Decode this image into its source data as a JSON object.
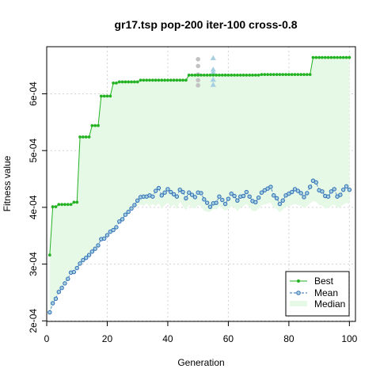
{
  "chart_data": {
    "type": "line",
    "title": "gr17.tsp pop-200 iter-100 cross-0.8",
    "xlabel": "Generation",
    "ylabel": "Fitness value",
    "xlim": [
      0,
      102
    ],
    "ylim": [
      0.000199,
      0.000683
    ],
    "xticks": [
      0,
      20,
      40,
      60,
      80,
      100
    ],
    "xtick_labels": [
      "0",
      "20",
      "40",
      "60",
      "80",
      "100"
    ],
    "yticks": [
      0.0002,
      0.0003,
      0.0004,
      0.0005,
      0.0006
    ],
    "ytick_labels": [
      "2e-04",
      "3e-04",
      "4e-04",
      "5e-04",
      "6e-04"
    ],
    "grid": true,
    "legend_position": "bottom-right",
    "colors": {
      "best": "#22b222",
      "mean": "#2e6eb5",
      "median_fill": "#e6f8e6",
      "grid": "#d3d3d3",
      "marker_gray": "#c2c2c2",
      "marker_blue": "#a6cfe0"
    },
    "series": [
      {
        "name": "Best",
        "x": [
          1,
          2,
          3,
          4,
          5,
          6,
          7,
          8,
          9,
          10,
          11,
          12,
          13,
          14,
          15,
          16,
          17,
          18,
          19,
          20,
          21,
          22,
          23,
          24,
          25,
          26,
          27,
          28,
          29,
          30,
          31,
          32,
          33,
          34,
          35,
          36,
          37,
          38,
          39,
          40,
          41,
          42,
          43,
          44,
          45,
          46,
          47,
          48,
          49,
          50,
          51,
          52,
          53,
          54,
          55,
          56,
          57,
          58,
          59,
          60,
          61,
          62,
          63,
          64,
          65,
          66,
          67,
          68,
          69,
          70,
          71,
          72,
          73,
          74,
          75,
          76,
          77,
          78,
          79,
          80,
          81,
          82,
          83,
          84,
          85,
          86,
          87,
          88,
          89,
          90,
          91,
          92,
          93,
          94,
          95,
          96,
          97,
          98,
          99,
          100
        ],
        "y": [
          0.000316,
          0.000401,
          0.000401,
          0.000405,
          0.000405,
          0.000405,
          0.000405,
          0.000405,
          0.000409,
          0.000409,
          0.000524,
          0.000524,
          0.000524,
          0.000524,
          0.000544,
          0.000544,
          0.000544,
          0.000596,
          0.000596,
          0.000596,
          0.000596,
          0.000619,
          0.000619,
          0.000621,
          0.000621,
          0.000621,
          0.000621,
          0.000621,
          0.000621,
          0.000621,
          0.000624,
          0.000624,
          0.000624,
          0.000624,
          0.000624,
          0.000624,
          0.000624,
          0.000624,
          0.000624,
          0.000624,
          0.000624,
          0.000624,
          0.000624,
          0.000624,
          0.000624,
          0.000624,
          0.000633,
          0.000633,
          0.000633,
          0.000633,
          0.000633,
          0.000633,
          0.000633,
          0.000633,
          0.000633,
          0.000633,
          0.000633,
          0.000633,
          0.000633,
          0.000633,
          0.000633,
          0.000633,
          0.000633,
          0.000633,
          0.000633,
          0.000633,
          0.000633,
          0.000633,
          0.000633,
          0.000633,
          0.000634,
          0.000634,
          0.000634,
          0.000634,
          0.000634,
          0.000634,
          0.000634,
          0.000634,
          0.000634,
          0.000634,
          0.000634,
          0.000634,
          0.000634,
          0.000634,
          0.000634,
          0.000634,
          0.000634,
          0.000664,
          0.000664,
          0.000664,
          0.000664,
          0.000664,
          0.000664,
          0.000664,
          0.000664,
          0.000664,
          0.000664,
          0.000664,
          0.000664,
          0.000664
        ]
      },
      {
        "name": "Mean",
        "x": [
          1,
          2,
          3,
          4,
          5,
          6,
          7,
          8,
          9,
          10,
          11,
          12,
          13,
          14,
          15,
          16,
          17,
          18,
          19,
          20,
          21,
          22,
          23,
          24,
          25,
          26,
          27,
          28,
          29,
          30,
          31,
          32,
          33,
          34,
          35,
          36,
          37,
          38,
          39,
          40,
          41,
          42,
          43,
          44,
          45,
          46,
          47,
          48,
          49,
          50,
          51,
          52,
          53,
          54,
          55,
          56,
          57,
          58,
          59,
          60,
          61,
          62,
          63,
          64,
          65,
          66,
          67,
          68,
          69,
          70,
          71,
          72,
          73,
          74,
          75,
          76,
          77,
          78,
          79,
          80,
          81,
          82,
          83,
          84,
          85,
          86,
          87,
          88,
          89,
          90,
          91,
          92,
          93,
          94,
          95,
          96,
          97,
          98,
          99,
          100
        ],
        "y": [
          0.000215,
          0.000231,
          0.000239,
          0.000251,
          0.000258,
          0.000266,
          0.000274,
          0.000285,
          0.000286,
          0.000293,
          0.000301,
          0.000307,
          0.000311,
          0.000316,
          0.000322,
          0.000327,
          0.000333,
          0.000344,
          0.000345,
          0.000351,
          0.000357,
          0.00036,
          0.000365,
          0.000375,
          0.000379,
          0.000387,
          0.000392,
          0.000398,
          0.000404,
          0.000412,
          0.000418,
          0.000419,
          0.000419,
          0.000421,
          0.000419,
          0.000429,
          0.000434,
          0.000421,
          0.000426,
          0.000432,
          0.000427,
          0.000423,
          0.000419,
          0.000431,
          0.000427,
          0.000416,
          0.000426,
          0.000422,
          0.000418,
          0.000426,
          0.000425,
          0.000414,
          0.000408,
          0.000401,
          0.000407,
          0.000408,
          0.000419,
          0.000413,
          0.000406,
          0.000415,
          0.000424,
          0.00042,
          0.000412,
          0.000419,
          0.00042,
          0.000427,
          0.000419,
          0.000411,
          0.000409,
          0.000417,
          0.000426,
          0.00043,
          0.000433,
          0.000436,
          0.000421,
          0.000416,
          0.000406,
          0.000412,
          0.000421,
          0.000424,
          0.000427,
          0.000432,
          0.000429,
          0.000425,
          0.000418,
          0.000425,
          0.000436,
          0.000447,
          0.000444,
          0.00043,
          0.000428,
          0.00042,
          0.000419,
          0.000428,
          0.000432,
          0.000419,
          0.000422,
          0.000431,
          0.000437,
          0.000431
        ]
      },
      {
        "name": "Median",
        "x": [
          1,
          2,
          3,
          4,
          5,
          6,
          7,
          8,
          9,
          10,
          11,
          12,
          13,
          14,
          15,
          16,
          17,
          18,
          19,
          20,
          21,
          22,
          23,
          24,
          25,
          26,
          27,
          28,
          29,
          30,
          31,
          32,
          33,
          34,
          35,
          36,
          37,
          38,
          39,
          40,
          41,
          42,
          43,
          44,
          45,
          46,
          47,
          48,
          49,
          50,
          51,
          52,
          53,
          54,
          55,
          56,
          57,
          58,
          59,
          60,
          61,
          62,
          63,
          64,
          65,
          66,
          67,
          68,
          69,
          70,
          71,
          72,
          73,
          74,
          75,
          76,
          77,
          78,
          79,
          80,
          81,
          82,
          83,
          84,
          85,
          86,
          87,
          88,
          89,
          90,
          91,
          92,
          93,
          94,
          95,
          96,
          97,
          98,
          99,
          100
        ],
        "y": [
          0.000215,
          0.000231,
          0.000239,
          0.000251,
          0.000258,
          0.000266,
          0.000274,
          0.000285,
          0.000286,
          0.000293,
          0.000301,
          0.000307,
          0.000311,
          0.000316,
          0.000322,
          0.000327,
          0.000333,
          0.000344,
          0.000345,
          0.000351,
          0.000357,
          0.00036,
          0.000365,
          0.000375,
          0.000379,
          0.000387,
          0.000392,
          0.000398,
          0.000402,
          0.000403,
          0.000405,
          0.000402,
          0.000407,
          0.000401,
          0.000406,
          0.000402,
          0.000407,
          0.000397,
          0.000404,
          0.000408,
          0.0004,
          0.000405,
          0.000397,
          0.00041,
          0.000402,
          0.000395,
          0.000404,
          0.000399,
          0.000398,
          0.000404,
          0.000402,
          0.000394,
          0.000392,
          0.000392,
          0.000397,
          0.000396,
          0.000402,
          0.000398,
          0.000394,
          0.000398,
          0.000402,
          0.0004,
          0.000393,
          0.0004,
          0.000402,
          0.000406,
          0.0004,
          0.000394,
          0.000393,
          0.000398,
          0.000404,
          0.000405,
          0.000407,
          0.000408,
          0.0004,
          0.000397,
          0.000391,
          0.000396,
          0.000401,
          0.000402,
          0.000404,
          0.000406,
          0.000404,
          0.000403,
          0.000398,
          0.000402,
          0.000407,
          0.000411,
          0.00041,
          0.000404,
          0.000403,
          0.000398,
          0.000399,
          0.000403,
          0.000405,
          0.000399,
          0.000401,
          0.000405,
          0.000408,
          0.000405
        ]
      }
    ],
    "markers": [
      {
        "x": 50,
        "y": 0.000661,
        "shape": "circle",
        "color": "#c2c2c2"
      },
      {
        "x": 50,
        "y": 0.000649,
        "shape": "circle",
        "color": "#c2c2c2"
      },
      {
        "x": 50,
        "y": 0.000634,
        "shape": "circle",
        "color": "#c2c2c2"
      },
      {
        "x": 50,
        "y": 0.000624,
        "shape": "circle",
        "color": "#c2c2c2"
      },
      {
        "x": 50,
        "y": 0.000615,
        "shape": "circle",
        "color": "#c2c2c2"
      },
      {
        "x": 55,
        "y": 0.000663,
        "shape": "triangle",
        "color": "#a6cfe0"
      },
      {
        "x": 55,
        "y": 0.000643,
        "shape": "triangle",
        "color": "#a6cfe0"
      },
      {
        "x": 55,
        "y": 0.000638,
        "shape": "triangle",
        "color": "#a6cfe0"
      },
      {
        "x": 55,
        "y": 0.000625,
        "shape": "triangle",
        "color": "#a6cfe0"
      },
      {
        "x": 55,
        "y": 0.000616,
        "shape": "triangle",
        "color": "#a6cfe0"
      }
    ]
  }
}
